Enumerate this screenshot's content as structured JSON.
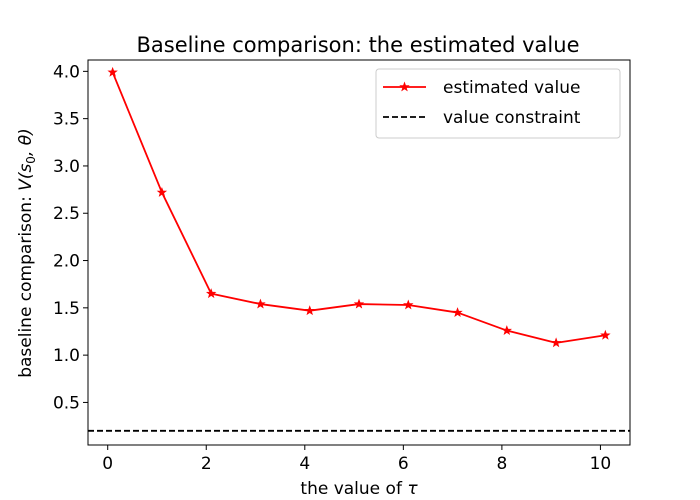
{
  "chart_data": {
    "type": "line",
    "title": "Baseline comparison: the estimated value",
    "xlabel_prefix": "the value of ",
    "xlabel_symbol": "τ",
    "ylabel_prefix": "baseline comparison: ",
    "ylabel_symbol": "V(s",
    "ylabel_subscript": "0",
    "ylabel_suffix": ", θ)",
    "xlim": [
      -0.4,
      10.6
    ],
    "ylim": [
      0.05,
      4.12
    ],
    "xticks": [
      0,
      2,
      4,
      6,
      8,
      10
    ],
    "xtick_labels": [
      "0",
      "2",
      "4",
      "6",
      "8",
      "10"
    ],
    "yticks": [
      0.5,
      1.0,
      1.5,
      2.0,
      2.5,
      3.0,
      3.5,
      4.0
    ],
    "ytick_labels": [
      "0.5",
      "1.0",
      "1.5",
      "2.0",
      "2.5",
      "3.0",
      "3.5",
      "4.0"
    ],
    "grid": false,
    "legend_position": "top-right",
    "series": [
      {
        "name": "estimated value",
        "color": "#ff0000",
        "marker": "star",
        "line_style": "solid",
        "x": [
          0.1,
          1.1,
          2.1,
          3.1,
          4.1,
          5.1,
          6.1,
          7.1,
          8.1,
          9.1,
          10.1
        ],
        "y": [
          3.99,
          2.72,
          1.65,
          1.54,
          1.47,
          1.54,
          1.53,
          1.45,
          1.26,
          1.13,
          1.21
        ]
      },
      {
        "name": "value constraint",
        "color": "#000000",
        "line_style": "dashed",
        "type": "hline",
        "y": 0.2
      }
    ]
  }
}
